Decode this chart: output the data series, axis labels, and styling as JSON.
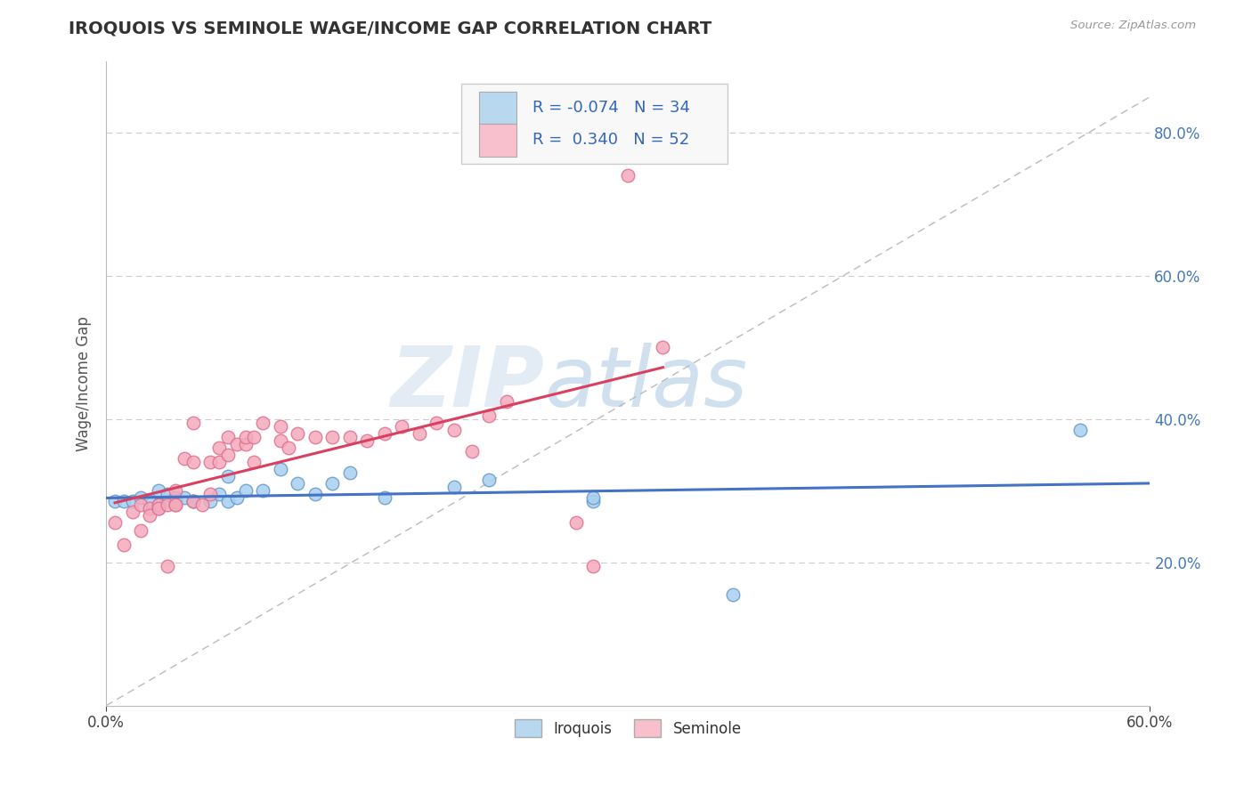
{
  "title": "IROQUOIS VS SEMINOLE WAGE/INCOME GAP CORRELATION CHART",
  "source_text": "Source: ZipAtlas.com",
  "ylabel_label": "Wage/Income Gap",
  "xlim": [
    0.0,
    0.6
  ],
  "ylim": [
    0.0,
    0.9
  ],
  "y_tick_positions": [
    0.2,
    0.4,
    0.6,
    0.8
  ],
  "y_tick_labels": [
    "20.0%",
    "40.0%",
    "60.0%",
    "80.0%"
  ],
  "iroquois_color": "#A8CFEE",
  "iroquois_edge": "#6699CC",
  "seminole_color": "#F4AABC",
  "seminole_edge": "#E07090",
  "legend_iroquois_color": "#B8D8F0",
  "legend_seminole_color": "#F8C0CC",
  "trend_iroquois_color": "#4472C4",
  "trend_seminole_color": "#D94060",
  "diagonal_color": "#BBBBBB",
  "R_iroquois": -0.074,
  "N_iroquois": 34,
  "R_seminole": 0.34,
  "N_seminole": 52,
  "watermark_zip": "ZIP",
  "watermark_atlas": "atlas",
  "iroquois_x": [
    0.005,
    0.01,
    0.015,
    0.02,
    0.025,
    0.03,
    0.03,
    0.035,
    0.035,
    0.04,
    0.04,
    0.04,
    0.045,
    0.05,
    0.05,
    0.06,
    0.065,
    0.07,
    0.07,
    0.075,
    0.08,
    0.09,
    0.1,
    0.11,
    0.12,
    0.13,
    0.14,
    0.16,
    0.2,
    0.22,
    0.28,
    0.28,
    0.36,
    0.56
  ],
  "iroquois_y": [
    0.285,
    0.285,
    0.285,
    0.29,
    0.285,
    0.28,
    0.3,
    0.285,
    0.295,
    0.285,
    0.29,
    0.285,
    0.29,
    0.285,
    0.285,
    0.285,
    0.295,
    0.32,
    0.285,
    0.29,
    0.3,
    0.3,
    0.33,
    0.31,
    0.295,
    0.31,
    0.325,
    0.29,
    0.305,
    0.315,
    0.285,
    0.29,
    0.155,
    0.385
  ],
  "seminole_x": [
    0.005,
    0.01,
    0.015,
    0.02,
    0.02,
    0.025,
    0.025,
    0.03,
    0.03,
    0.03,
    0.035,
    0.035,
    0.04,
    0.04,
    0.04,
    0.045,
    0.05,
    0.05,
    0.05,
    0.055,
    0.06,
    0.06,
    0.065,
    0.065,
    0.07,
    0.07,
    0.075,
    0.08,
    0.08,
    0.085,
    0.085,
    0.09,
    0.1,
    0.1,
    0.105,
    0.11,
    0.12,
    0.13,
    0.14,
    0.15,
    0.16,
    0.17,
    0.18,
    0.19,
    0.2,
    0.21,
    0.22,
    0.23,
    0.27,
    0.28,
    0.3,
    0.32
  ],
  "seminole_y": [
    0.255,
    0.225,
    0.27,
    0.28,
    0.245,
    0.275,
    0.265,
    0.275,
    0.28,
    0.275,
    0.195,
    0.28,
    0.28,
    0.28,
    0.3,
    0.345,
    0.34,
    0.395,
    0.285,
    0.28,
    0.34,
    0.295,
    0.34,
    0.36,
    0.375,
    0.35,
    0.365,
    0.365,
    0.375,
    0.34,
    0.375,
    0.395,
    0.37,
    0.39,
    0.36,
    0.38,
    0.375,
    0.375,
    0.375,
    0.37,
    0.38,
    0.39,
    0.38,
    0.395,
    0.385,
    0.355,
    0.405,
    0.425,
    0.255,
    0.195,
    0.74,
    0.5
  ]
}
